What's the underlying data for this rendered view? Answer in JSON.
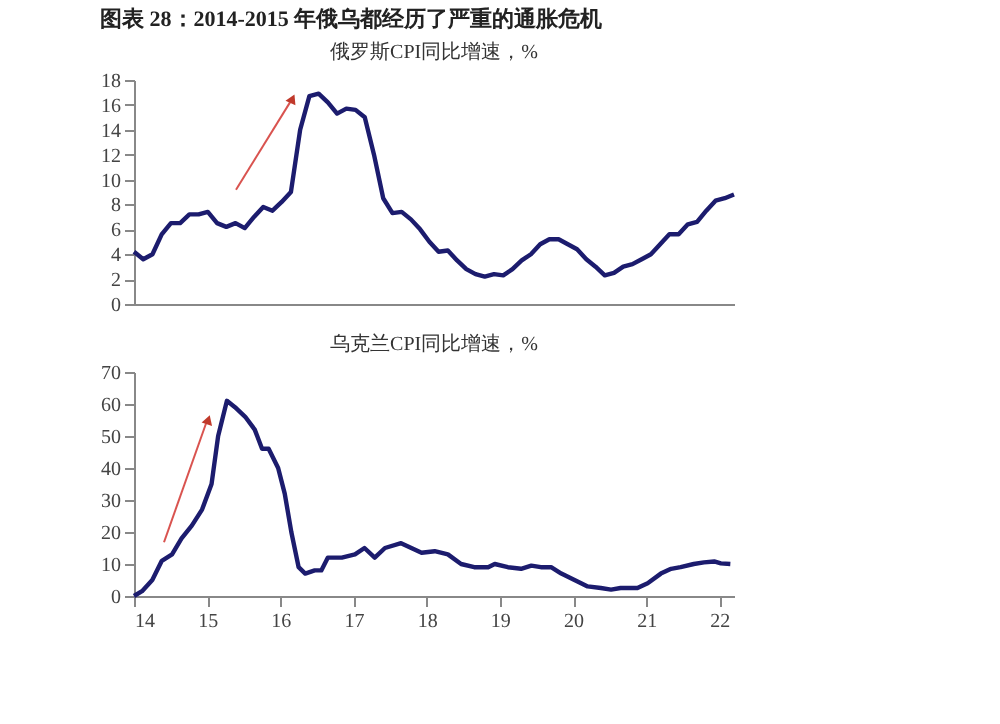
{
  "chart_data": [
    {
      "type": "line",
      "title": "图表 28：2014-2015 年俄乌都经历了严重的通胀危机",
      "subtitle": "俄罗斯CPI同比增速，%",
      "categories": [
        null,
        null,
        null,
        null,
        null,
        null,
        null,
        null,
        null,
        null,
        null,
        null,
        null,
        null,
        null,
        null,
        null,
        null,
        null,
        null,
        null,
        null,
        null,
        null,
        null,
        null,
        null,
        null,
        null,
        null,
        null,
        null,
        null,
        null,
        null,
        null,
        null,
        null,
        null,
        null,
        null,
        null,
        null,
        null,
        null,
        null,
        null,
        null,
        null,
        null,
        null,
        null,
        null,
        null,
        null,
        null,
        null,
        null,
        null,
        null,
        null,
        null,
        null,
        null,
        null,
        null
      ],
      "series": [
        {
          "color": "#1c1c6e",
          "values": [
            4.2,
            3.6,
            4.0,
            5.6,
            6.5,
            6.5,
            7.2,
            7.2,
            7.4,
            6.5,
            6.2,
            6.5,
            6.1,
            7.0,
            7.8,
            7.5,
            8.2,
            9.0,
            14,
            16.7,
            16.9,
            16.2,
            15.3,
            15.7,
            15.6,
            15.0,
            12,
            8.5,
            7.3,
            7.4,
            6.8,
            6.0,
            5.0,
            4.2,
            4.3,
            3.5,
            2.8,
            2.4,
            2.2,
            2.4,
            2.3,
            2.8,
            3.5,
            4.0,
            4.8,
            5.2,
            5.2,
            4.8,
            4.4,
            3.6,
            3.0,
            2.3,
            2.5,
            3.0,
            3.2,
            3.6,
            4.0,
            4.8,
            5.6,
            5.6,
            6.4,
            6.6,
            7.5,
            8.3,
            8.5,
            8.8
          ]
        }
      ],
      "ylim": [
        0,
        18
      ],
      "yticks": [
        0,
        2,
        4,
        6,
        8,
        10,
        12,
        14,
        16,
        18
      ],
      "tick_labels": "y"
    },
    {
      "type": "line",
      "title": "乌克兰CPI同比增速，%",
      "x": [
        14.0,
        14.11,
        14.25,
        14.38,
        14.52,
        14.65,
        14.79,
        14.93,
        15.06,
        15.15,
        15.27,
        15.38,
        15.52,
        15.65,
        15.75,
        15.84,
        15.97,
        16.06,
        16.15,
        16.25,
        16.34,
        16.47,
        16.56,
        16.65,
        16.84,
        17.02,
        17.15,
        17.29,
        17.43,
        17.65,
        17.79,
        17.93,
        18.11,
        18.29,
        18.47,
        18.65,
        18.84,
        18.93,
        19.11,
        19.29,
        19.43,
        19.56,
        19.7,
        19.84,
        20.02,
        20.2,
        20.38,
        20.52,
        20.65,
        20.88,
        21.02,
        21.2,
        21.34,
        21.47,
        21.65,
        21.79,
        21.93,
        22.02,
        22.15
      ],
      "series": [
        {
          "color": "#1c1c6e",
          "values": [
            0,
            1.5,
            5,
            11,
            13,
            18,
            22,
            27,
            35,
            50,
            61,
            59,
            56,
            52,
            46,
            46,
            40,
            32,
            20,
            9,
            7,
            8,
            8,
            12,
            12,
            13,
            15,
            12,
            15,
            16.5,
            15,
            13.5,
            14,
            13,
            10,
            9,
            9,
            10,
            9,
            8.5,
            9.5,
            9,
            9,
            7,
            5,
            3,
            2.5,
            2,
            2.5,
            2.5,
            4,
            7,
            8.5,
            9,
            10,
            10.5,
            10.8,
            10.2,
            10
          ]
        }
      ],
      "xlim": [
        14,
        22.2
      ],
      "xticks": [
        14,
        15,
        16,
        17,
        18,
        19,
        20,
        21,
        22
      ],
      "ylim": [
        0,
        70
      ],
      "yticks": [
        0,
        10,
        20,
        30,
        40,
        50,
        60,
        70
      ]
    }
  ]
}
